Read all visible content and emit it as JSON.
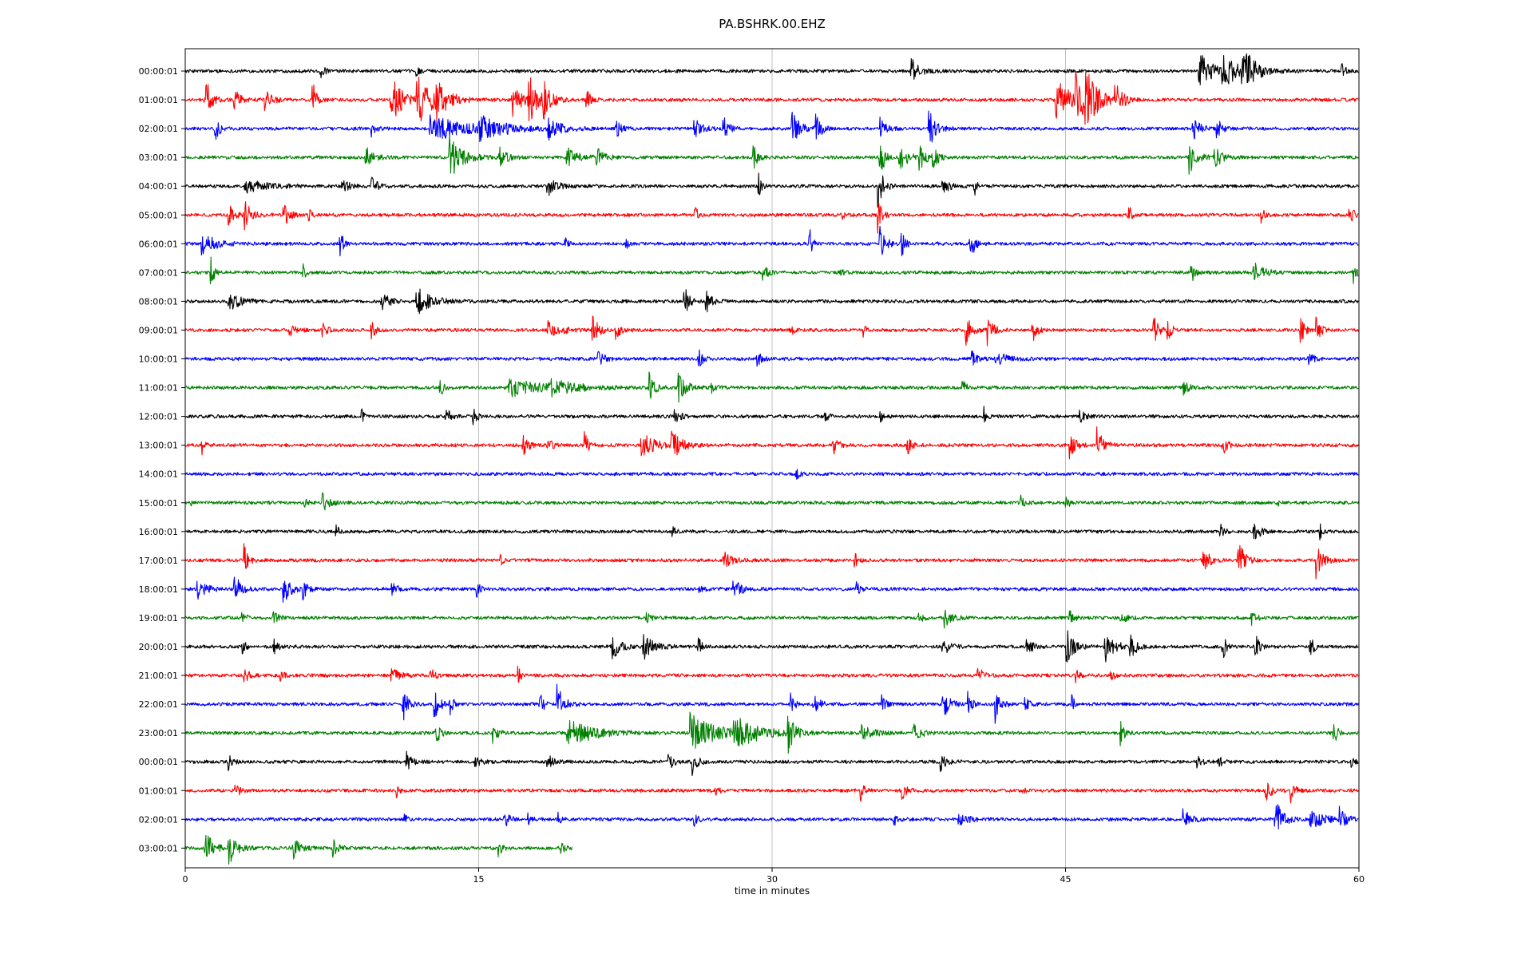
{
  "chart_data": {
    "type": "line",
    "title": "PA.BSHRK.00.EHZ",
    "xlabel": "time in minutes",
    "ylabel": "",
    "xlim": [
      0,
      60
    ],
    "xticks": [
      "0",
      "15",
      "30",
      "45",
      "60"
    ],
    "grid": "vertical at 15-minute ticks",
    "colors": [
      "#000000",
      "#ff0000",
      "#0000ff",
      "#008000"
    ],
    "row_labels": [
      "00:00:01",
      "01:00:01",
      "02:00:01",
      "03:00:01",
      "04:00:01",
      "05:00:01",
      "06:00:01",
      "07:00:01",
      "08:00:01",
      "09:00:01",
      "10:00:01",
      "11:00:01",
      "12:00:01",
      "13:00:01",
      "14:00:01",
      "15:00:01",
      "16:00:01",
      "17:00:01",
      "18:00:01",
      "19:00:01",
      "20:00:01",
      "21:00:01",
      "22:00:01",
      "23:00:01",
      "00:00:01",
      "01:00:01",
      "02:00:01",
      "03:00:01"
    ],
    "last_row_end_minute": 19.8,
    "events": [
      [
        [
          6.9,
          0.7,
          0.3
        ],
        [
          11.8,
          0.5,
          0.2
        ],
        [
          37.1,
          1.2,
          0.6
        ],
        [
          51.8,
          2.0,
          1.0
        ],
        [
          53.0,
          1.5,
          1.2
        ],
        [
          54.0,
          2.2,
          1.0
        ],
        [
          59.1,
          0.8,
          0.3
        ]
      ],
      [
        [
          1.0,
          2.2,
          0.5
        ],
        [
          2.5,
          1.0,
          0.5
        ],
        [
          4.0,
          1.0,
          0.6
        ],
        [
          6.5,
          2.4,
          0.3
        ],
        [
          10.5,
          2.2,
          1.0
        ],
        [
          11.8,
          2.4,
          1.4
        ],
        [
          12.8,
          1.5,
          0.8
        ],
        [
          16.7,
          1.5,
          0.8
        ],
        [
          17.5,
          2.5,
          0.8
        ],
        [
          18.3,
          1.5,
          0.6
        ],
        [
          20.5,
          1.0,
          0.3
        ],
        [
          44.5,
          2.0,
          1.2
        ],
        [
          45.5,
          2.5,
          1.0
        ],
        [
          46.0,
          2.4,
          0.8
        ],
        [
          47.5,
          1.5,
          0.6
        ]
      ],
      [
        [
          1.5,
          1.2,
          0.4
        ],
        [
          9.5,
          0.8,
          0.3
        ],
        [
          12.5,
          1.2,
          3.0
        ],
        [
          15.0,
          1.0,
          2.0
        ],
        [
          18.5,
          1.0,
          1.0
        ],
        [
          22.0,
          0.9,
          0.4
        ],
        [
          26.0,
          1.0,
          0.6
        ],
        [
          27.5,
          1.2,
          0.4
        ],
        [
          31.0,
          1.8,
          0.6
        ],
        [
          32.2,
          1.6,
          0.4
        ],
        [
          35.5,
          1.0,
          0.5
        ],
        [
          38.0,
          2.0,
          0.5
        ],
        [
          51.5,
          1.2,
          0.5
        ],
        [
          52.7,
          1.1,
          0.4
        ]
      ],
      [
        [
          9.2,
          1.0,
          0.6
        ],
        [
          13.5,
          2.0,
          1.0
        ],
        [
          16.0,
          1.0,
          0.6
        ],
        [
          19.5,
          1.0,
          0.8
        ],
        [
          21.0,
          1.2,
          0.5
        ],
        [
          29.0,
          1.8,
          0.3
        ],
        [
          35.5,
          2.4,
          0.3
        ],
        [
          36.5,
          1.5,
          0.6
        ],
        [
          37.5,
          1.2,
          0.5
        ],
        [
          38.2,
          1.0,
          0.4
        ],
        [
          51.3,
          1.5,
          0.6
        ],
        [
          52.6,
          1.2,
          0.5
        ]
      ],
      [
        [
          3.0,
          0.6,
          1.8
        ],
        [
          8.0,
          0.8,
          0.6
        ],
        [
          9.5,
          0.8,
          0.5
        ],
        [
          18.5,
          0.9,
          0.7
        ],
        [
          29.3,
          1.2,
          0.2
        ],
        [
          35.4,
          2.4,
          0.4
        ],
        [
          38.7,
          0.8,
          0.5
        ],
        [
          40.3,
          1.3,
          0.2
        ]
      ],
      [
        [
          2.2,
          1.2,
          0.5
        ],
        [
          3.0,
          1.3,
          0.6
        ],
        [
          5.0,
          1.4,
          0.4
        ],
        [
          6.3,
          1.0,
          0.2
        ],
        [
          26.0,
          1.3,
          0.2
        ],
        [
          33.5,
          0.6,
          0.2
        ],
        [
          35.4,
          1.5,
          0.3
        ],
        [
          48.2,
          1.3,
          0.2
        ],
        [
          55.0,
          0.9,
          0.2
        ],
        [
          59.5,
          0.8,
          0.4
        ]
      ],
      [
        [
          0.8,
          1.0,
          1.2
        ],
        [
          7.9,
          1.8,
          0.2
        ],
        [
          19.4,
          0.6,
          0.2
        ],
        [
          22.5,
          0.6,
          0.2
        ],
        [
          31.9,
          1.6,
          0.2
        ],
        [
          35.5,
          2.0,
          0.4
        ],
        [
          36.6,
          1.4,
          0.3
        ],
        [
          40.1,
          1.6,
          0.4
        ]
      ],
      [
        [
          1.3,
          2.0,
          0.2
        ],
        [
          6.0,
          0.9,
          0.2
        ],
        [
          29.5,
          1.1,
          0.3
        ],
        [
          33.5,
          0.5,
          0.2
        ],
        [
          51.4,
          1.5,
          0.2
        ],
        [
          54.6,
          0.9,
          0.8
        ],
        [
          59.7,
          1.0,
          0.4
        ]
      ],
      [
        [
          2.2,
          1.0,
          0.8
        ],
        [
          10.0,
          0.9,
          0.6
        ],
        [
          11.8,
          1.3,
          1.2
        ],
        [
          25.5,
          1.4,
          0.4
        ],
        [
          26.6,
          1.2,
          0.4
        ]
      ],
      [
        [
          5.3,
          0.7,
          0.6
        ],
        [
          7.0,
          0.6,
          0.4
        ],
        [
          9.5,
          0.9,
          0.3
        ],
        [
          18.5,
          0.9,
          1.0
        ],
        [
          20.8,
          1.3,
          0.5
        ],
        [
          22.0,
          0.8,
          0.4
        ],
        [
          30.9,
          0.9,
          0.2
        ],
        [
          34.6,
          0.9,
          0.2
        ],
        [
          39.9,
          1.5,
          0.4
        ],
        [
          41.0,
          1.5,
          0.4
        ],
        [
          43.3,
          1.5,
          0.3
        ],
        [
          49.5,
          1.5,
          0.4
        ],
        [
          50.2,
          1.2,
          0.3
        ],
        [
          57.0,
          1.5,
          0.3
        ],
        [
          57.8,
          1.5,
          0.3
        ]
      ],
      [
        [
          21.1,
          1.0,
          0.4
        ],
        [
          26.2,
          1.2,
          0.3
        ],
        [
          29.2,
          0.9,
          0.3
        ],
        [
          40.2,
          0.7,
          0.4
        ],
        [
          41.4,
          0.6,
          1.0
        ],
        [
          57.4,
          0.9,
          0.3
        ]
      ],
      [
        [
          13.0,
          1.0,
          0.3
        ],
        [
          16.5,
          0.8,
          3.0
        ],
        [
          18.6,
          0.6,
          2.0
        ],
        [
          23.7,
          1.4,
          0.4
        ],
        [
          25.2,
          1.4,
          0.6
        ],
        [
          26.9,
          0.7,
          0.3
        ],
        [
          39.7,
          0.8,
          0.3
        ],
        [
          51.0,
          0.7,
          0.4
        ]
      ],
      [
        [
          9.0,
          0.7,
          0.2
        ],
        [
          13.3,
          1.0,
          0.3
        ],
        [
          14.7,
          1.0,
          0.3
        ],
        [
          25.0,
          0.6,
          0.5
        ],
        [
          32.7,
          0.7,
          0.2
        ],
        [
          35.5,
          0.6,
          0.3
        ],
        [
          40.8,
          1.0,
          0.2
        ],
        [
          45.7,
          0.6,
          0.4
        ]
      ],
      [
        [
          0.8,
          1.3,
          0.2
        ],
        [
          17.2,
          1.2,
          0.4
        ],
        [
          18.5,
          0.6,
          0.4
        ],
        [
          20.4,
          1.4,
          0.3
        ],
        [
          23.3,
          1.3,
          1.0
        ],
        [
          24.8,
          1.4,
          0.8
        ],
        [
          33.1,
          0.9,
          0.4
        ],
        [
          36.9,
          1.0,
          0.3
        ],
        [
          45.2,
          1.5,
          0.4
        ],
        [
          46.6,
          1.5,
          0.5
        ],
        [
          53.0,
          1.2,
          0.3
        ]
      ],
      [
        [
          31.2,
          0.7,
          0.2
        ]
      ],
      [
        [
          0.2,
          0.5,
          0.2
        ],
        [
          6.1,
          0.9,
          0.2
        ],
        [
          7.0,
          1.0,
          0.5
        ],
        [
          42.7,
          0.8,
          0.3
        ],
        [
          45.0,
          0.6,
          0.3
        ],
        [
          55.8,
          0.5,
          0.2
        ]
      ],
      [
        [
          7.7,
          0.6,
          0.3
        ],
        [
          24.9,
          0.6,
          0.2
        ],
        [
          52.9,
          0.7,
          0.3
        ],
        [
          54.6,
          1.3,
          0.4
        ],
        [
          58.0,
          0.7,
          0.2
        ]
      ],
      [
        [
          3.0,
          1.8,
          0.3
        ],
        [
          16.1,
          0.6,
          0.2
        ],
        [
          27.5,
          0.9,
          0.6
        ],
        [
          34.2,
          1.0,
          0.2
        ],
        [
          52.0,
          1.8,
          0.4
        ],
        [
          53.8,
          2.0,
          0.5
        ],
        [
          57.8,
          1.7,
          0.5
        ]
      ],
      [
        [
          0.6,
          1.2,
          0.6
        ],
        [
          2.5,
          1.6,
          0.5
        ],
        [
          5.0,
          1.4,
          0.6
        ],
        [
          6.0,
          1.1,
          0.3
        ],
        [
          10.5,
          0.8,
          0.4
        ],
        [
          14.9,
          1.0,
          0.2
        ],
        [
          26.2,
          0.6,
          0.3
        ],
        [
          28.0,
          1.0,
          0.6
        ],
        [
          34.3,
          0.6,
          0.3
        ]
      ],
      [
        [
          2.9,
          1.2,
          0.2
        ],
        [
          4.5,
          0.9,
          0.3
        ],
        [
          23.5,
          0.6,
          0.4
        ],
        [
          37.5,
          0.6,
          0.3
        ],
        [
          38.8,
          0.9,
          0.6
        ],
        [
          45.2,
          1.0,
          0.3
        ],
        [
          47.8,
          0.7,
          0.4
        ],
        [
          54.5,
          0.8,
          0.3
        ]
      ],
      [
        [
          2.9,
          1.0,
          0.2
        ],
        [
          4.5,
          0.9,
          0.3
        ],
        [
          21.8,
          1.5,
          0.6
        ],
        [
          23.4,
          1.2,
          0.8
        ],
        [
          26.2,
          1.4,
          0.2
        ],
        [
          38.7,
          1.0,
          0.5
        ],
        [
          43.0,
          1.0,
          0.4
        ],
        [
          45.0,
          1.8,
          0.6
        ],
        [
          47.0,
          1.4,
          0.8
        ],
        [
          48.3,
          1.3,
          0.4
        ],
        [
          53.0,
          1.4,
          0.3
        ],
        [
          54.7,
          1.2,
          0.3
        ],
        [
          57.5,
          1.0,
          0.3
        ]
      ],
      [
        [
          3.0,
          1.1,
          0.3
        ],
        [
          4.8,
          0.6,
          0.3
        ],
        [
          10.5,
          0.8,
          0.6
        ],
        [
          12.5,
          0.7,
          0.4
        ],
        [
          17.0,
          1.0,
          0.2
        ],
        [
          40.5,
          1.0,
          0.4
        ],
        [
          45.5,
          0.6,
          0.3
        ],
        [
          47.3,
          0.6,
          0.3
        ]
      ],
      [
        [
          11.1,
          1.8,
          0.4
        ],
        [
          12.7,
          1.4,
          0.5
        ],
        [
          13.5,
          1.0,
          0.3
        ],
        [
          18.1,
          1.3,
          0.3
        ],
        [
          19.0,
          1.8,
          0.5
        ],
        [
          30.9,
          1.4,
          0.3
        ],
        [
          32.1,
          1.0,
          0.5
        ],
        [
          35.6,
          0.9,
          0.3
        ],
        [
          38.7,
          1.6,
          0.5
        ],
        [
          40.0,
          1.1,
          0.3
        ],
        [
          41.4,
          1.6,
          0.4
        ],
        [
          42.9,
          0.9,
          0.3
        ],
        [
          45.3,
          1.0,
          0.2
        ]
      ],
      [
        [
          12.8,
          1.2,
          0.3
        ],
        [
          15.7,
          1.2,
          0.3
        ],
        [
          19.5,
          1.4,
          2.0
        ],
        [
          25.8,
          1.8,
          2.0
        ],
        [
          28.0,
          1.4,
          2.0
        ],
        [
          30.8,
          1.8,
          0.5
        ],
        [
          34.5,
          0.8,
          1.0
        ],
        [
          37.2,
          0.9,
          0.6
        ],
        [
          47.8,
          1.1,
          0.3
        ],
        [
          58.7,
          1.1,
          0.3
        ]
      ],
      [
        [
          2.2,
          0.8,
          0.3
        ],
        [
          11.3,
          1.2,
          0.4
        ],
        [
          14.8,
          0.6,
          0.4
        ],
        [
          18.5,
          0.8,
          0.4
        ],
        [
          24.7,
          1.2,
          0.3
        ],
        [
          25.9,
          1.3,
          0.4
        ],
        [
          38.6,
          0.9,
          0.4
        ],
        [
          51.7,
          0.6,
          0.4
        ],
        [
          52.8,
          0.5,
          0.4
        ],
        [
          59.6,
          0.6,
          0.2
        ]
      ],
      [
        [
          2.5,
          1.0,
          0.4
        ],
        [
          10.8,
          0.8,
          0.2
        ],
        [
          27.1,
          0.8,
          0.2
        ],
        [
          34.5,
          1.0,
          0.3
        ],
        [
          36.6,
          1.0,
          0.4
        ],
        [
          42.8,
          0.6,
          0.2
        ],
        [
          55.2,
          1.3,
          0.4
        ],
        [
          56.5,
          1.1,
          0.3
        ]
      ],
      [
        [
          11.2,
          0.5,
          0.2
        ],
        [
          16.3,
          1.4,
          0.3
        ],
        [
          17.5,
          0.8,
          0.3
        ],
        [
          19.0,
          0.9,
          0.2
        ],
        [
          26.0,
          1.2,
          0.2
        ],
        [
          36.2,
          0.6,
          0.4
        ],
        [
          39.5,
          0.7,
          0.8
        ],
        [
          51.0,
          1.2,
          0.5
        ],
        [
          55.7,
          2.0,
          0.6
        ],
        [
          57.5,
          1.0,
          1.0
        ],
        [
          59.0,
          1.0,
          0.5
        ]
      ],
      [
        [
          1.0,
          1.9,
          0.6
        ],
        [
          2.2,
          1.6,
          0.6
        ],
        [
          5.5,
          1.0,
          0.6
        ],
        [
          7.5,
          1.2,
          0.4
        ],
        [
          16.0,
          0.8,
          0.3
        ],
        [
          19.2,
          0.6,
          0.3
        ]
      ]
    ]
  }
}
